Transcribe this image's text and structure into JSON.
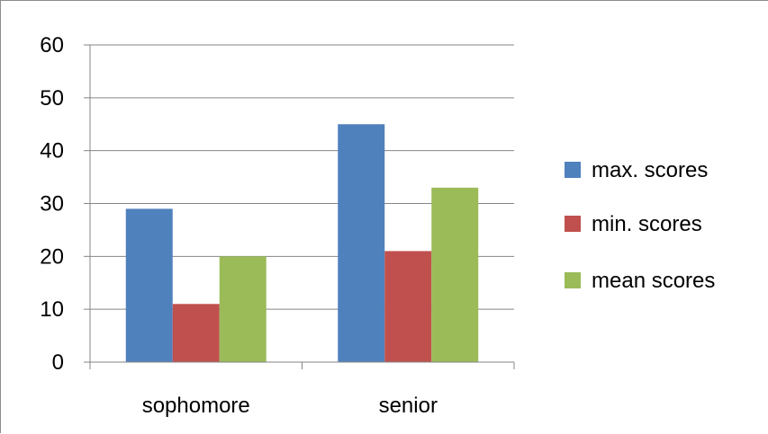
{
  "chart_data": {
    "type": "bar",
    "categories": [
      "sophomore",
      "senior"
    ],
    "series": [
      {
        "name": " max. scores",
        "values": [
          29,
          45
        ],
        "color": "#4F81BD"
      },
      {
        "name": "min. scores",
        "values": [
          11,
          21
        ],
        "color": "#C0504D"
      },
      {
        "name": "mean scores",
        "values": [
          20,
          33
        ],
        "color": "#9BBB59"
      }
    ],
    "title": "",
    "xlabel": "",
    "ylabel": "",
    "ylim": [
      0,
      60
    ],
    "yticks": [
      0,
      10,
      20,
      30,
      40,
      50,
      60
    ],
    "grid": true,
    "legend_position": "right",
    "gridline_color": "#868686",
    "axis_color": "#868686"
  }
}
